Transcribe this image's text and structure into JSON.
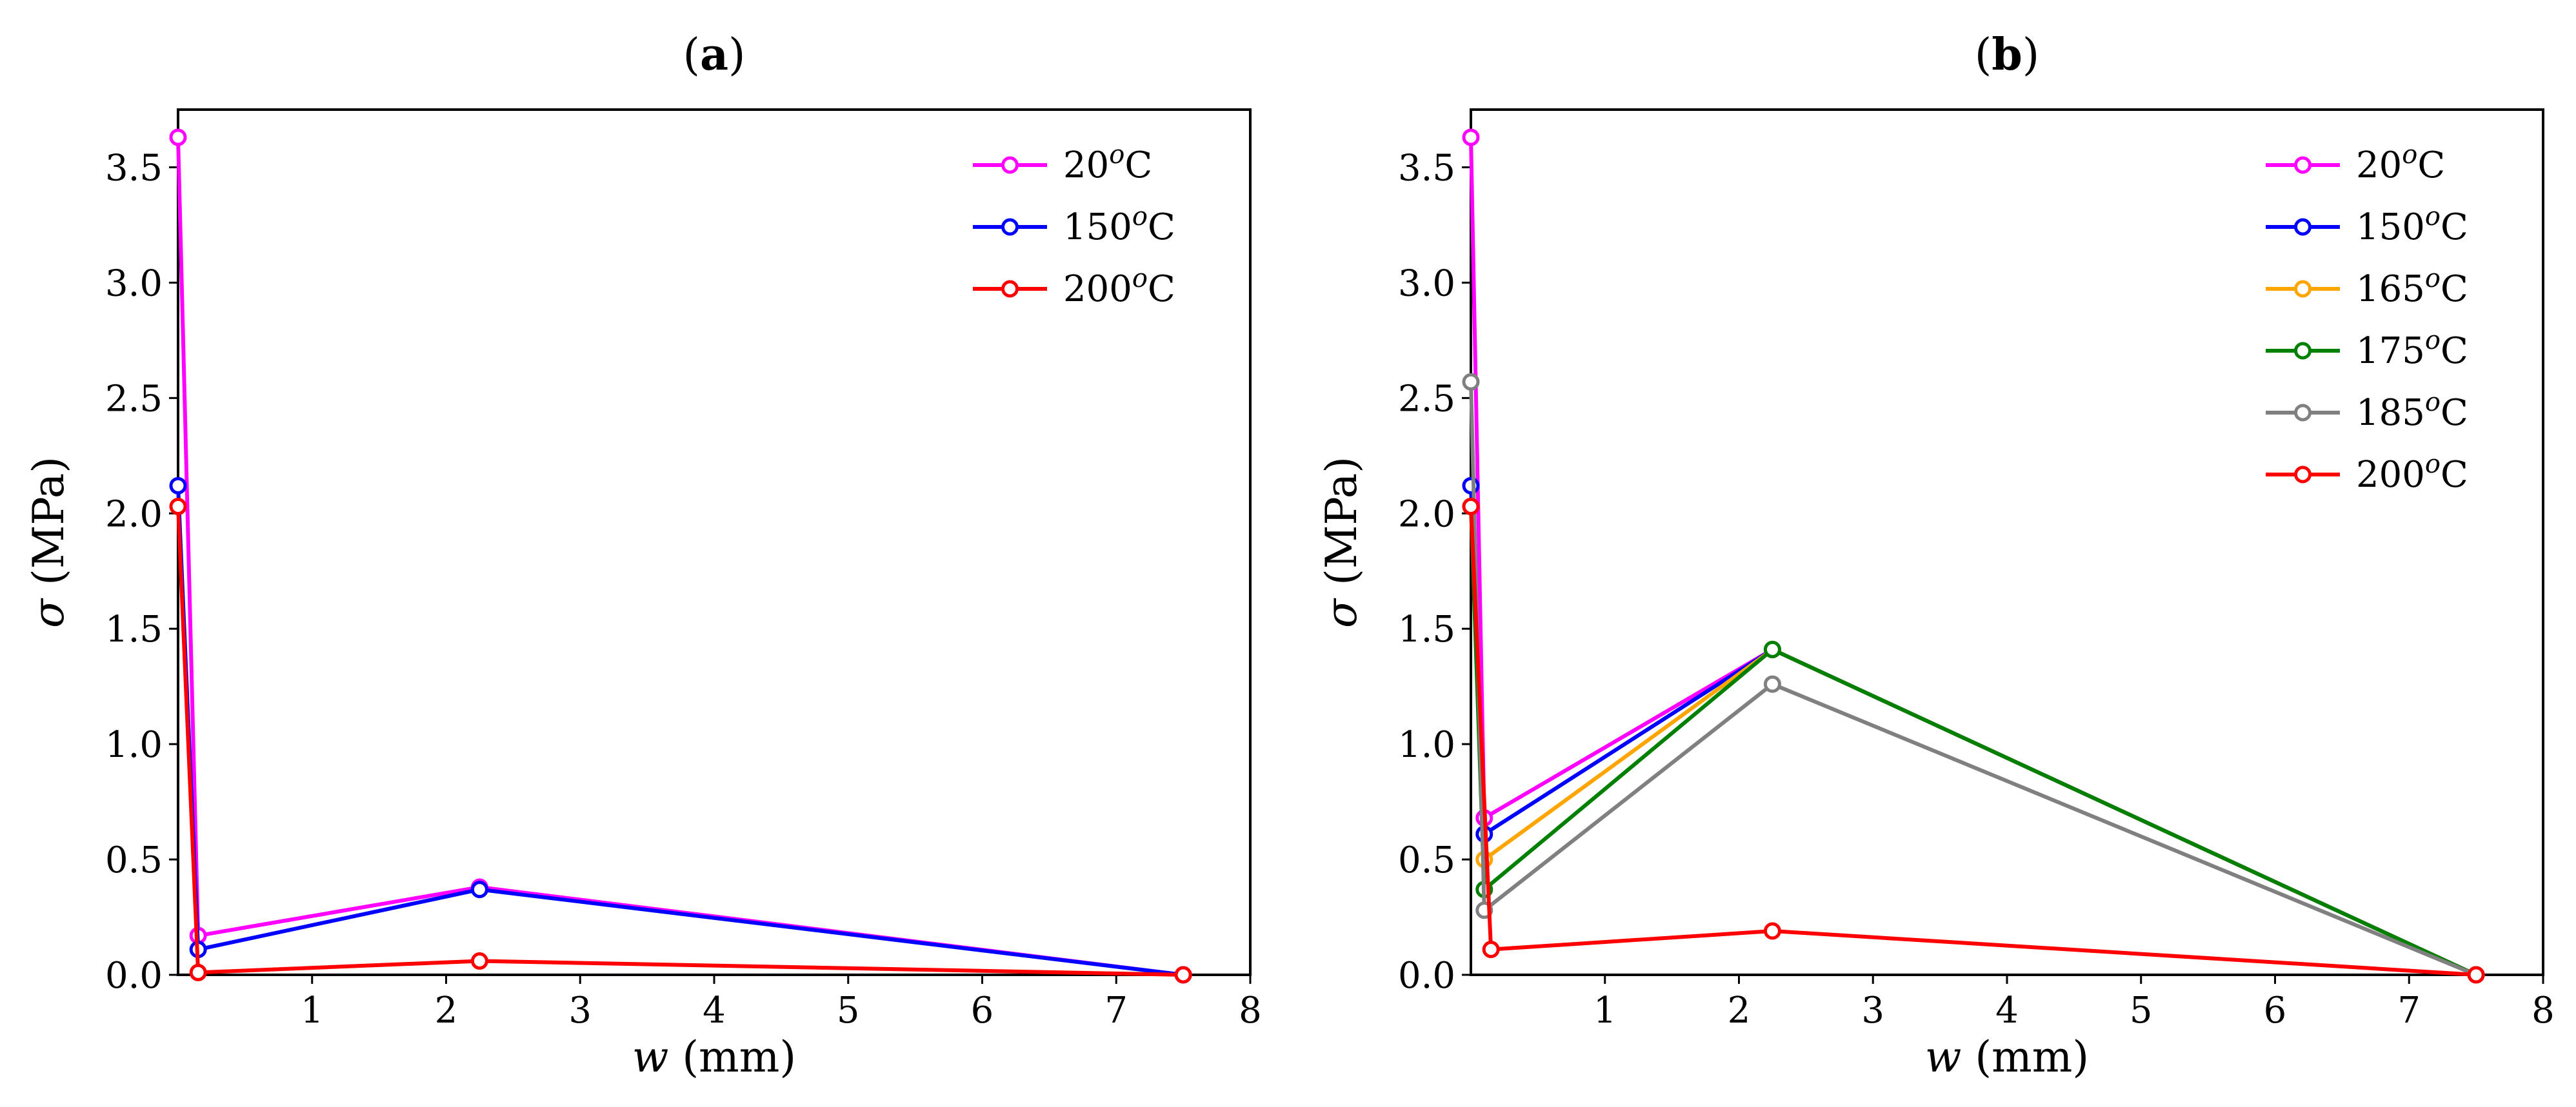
{
  "chart_data": [
    {
      "type": "line",
      "title": "(a)",
      "xlabel": "w (mm)",
      "ylabel": "σ (MPa)",
      "xlim": [
        0,
        8
      ],
      "ylim": [
        0,
        3.75
      ],
      "xticks": [
        "1",
        "2",
        "3",
        "4",
        "5",
        "6",
        "7",
        "8"
      ],
      "yticks": [
        "0.0",
        "0.5",
        "1.0",
        "1.5",
        "2.0",
        "2.5",
        "3.0",
        "3.5"
      ],
      "grid": false,
      "legend_position": "top-right",
      "series": [
        {
          "name": "20°C",
          "color": "#ff00ff",
          "x": [
            0,
            0.15,
            2.25,
            7.5
          ],
          "y": [
            3.63,
            0.17,
            0.38,
            0.0
          ]
        },
        {
          "name": "150°C",
          "color": "#0000ff",
          "x": [
            0,
            0.15,
            2.25,
            7.5
          ],
          "y": [
            2.12,
            0.11,
            0.37,
            0.0
          ]
        },
        {
          "name": "200°C",
          "color": "#ff0000",
          "x": [
            0,
            0.15,
            2.25,
            7.5
          ],
          "y": [
            2.03,
            0.01,
            0.06,
            0.0
          ]
        }
      ]
    },
    {
      "type": "line",
      "title": "(b)",
      "xlabel": "w (mm)",
      "ylabel": "σ (MPa)",
      "xlim": [
        0,
        8
      ],
      "ylim": [
        0,
        3.75
      ],
      "xticks": [
        "1",
        "2",
        "3",
        "4",
        "5",
        "6",
        "7",
        "8"
      ],
      "yticks": [
        "0.0",
        "0.5",
        "1.0",
        "1.5",
        "2.0",
        "2.5",
        "3.0",
        "3.5"
      ],
      "grid": false,
      "legend_position": "top-right",
      "series": [
        {
          "name": "20°C",
          "color": "#ff00ff",
          "x": [
            0,
            0.1,
            2.25,
            7.5
          ],
          "y": [
            3.63,
            0.68,
            1.41,
            0.0
          ]
        },
        {
          "name": "150°C",
          "color": "#0000ff",
          "x": [
            0,
            0.1,
            2.25,
            7.5
          ],
          "y": [
            2.12,
            0.61,
            1.41,
            0.0
          ]
        },
        {
          "name": "165°C",
          "color": "#ffa500",
          "x": [
            0,
            0.1,
            2.25,
            7.5
          ],
          "y": [
            2.03,
            0.5,
            1.41,
            0.0
          ]
        },
        {
          "name": "175°C",
          "color": "#008000",
          "x": [
            0,
            0.1,
            2.25,
            7.5
          ],
          "y": [
            2.03,
            0.37,
            1.41,
            0.0
          ]
        },
        {
          "name": "185°C",
          "color": "#808080",
          "x": [
            0,
            0.1,
            2.25,
            7.5
          ],
          "y": [
            2.57,
            0.28,
            1.26,
            0.0
          ]
        },
        {
          "name": "200°C",
          "color": "#ff0000",
          "x": [
            0,
            0.15,
            2.25,
            7.5
          ],
          "y": [
            2.03,
            0.11,
            0.19,
            0.0
          ]
        }
      ]
    }
  ]
}
